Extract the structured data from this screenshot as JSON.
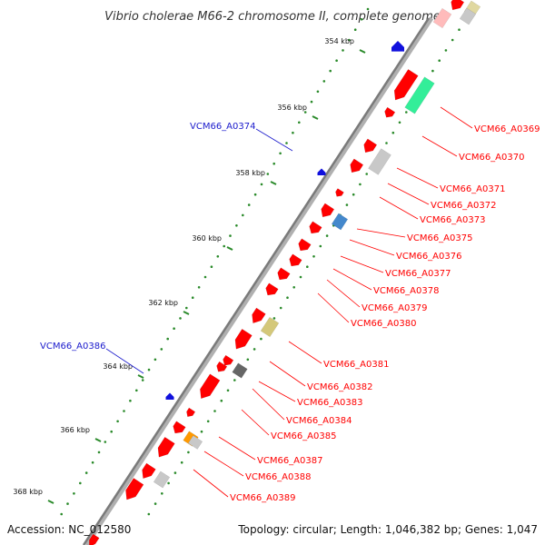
{
  "title": "Vibrio cholerae M66-2 chromosome II, complete genome",
  "footer": {
    "accession": "Accession: NC_012580",
    "summary": "Topology: circular; Length: 1,046,382 bp; Genes: 1,047"
  },
  "colors": {
    "backbone": "#8a8a8a",
    "forward_gene": "#ff0000",
    "reverse_gene_label": "#1a1acc",
    "forward_label": "#ff0000",
    "tick_dots": "#2a8a2a"
  },
  "chart_data": {
    "type": "genome-map",
    "ticks_kbp": [
      "354 kbp",
      "356 kbp",
      "358 kbp",
      "360 kbp",
      "362 kbp",
      "364 kbp",
      "366 kbp",
      "368 kbp"
    ],
    "labels_reverse": [
      "VCM66_A0374",
      "VCM66_A0386"
    ],
    "labels_forward": [
      "VCM66_A0369",
      "VCM66_A0370",
      "VCM66_A0371",
      "VCM66_A0372",
      "VCM66_A0373",
      "VCM66_A0375",
      "VCM66_A0376",
      "VCM66_A0377",
      "VCM66_A0378",
      "VCM66_A0379",
      "VCM66_A0380",
      "VCM66_A0381",
      "VCM66_A0382",
      "VCM66_A0383",
      "VCM66_A0384",
      "VCM66_A0385",
      "VCM66_A0387",
      "VCM66_A0388",
      "VCM66_A0389"
    ]
  }
}
